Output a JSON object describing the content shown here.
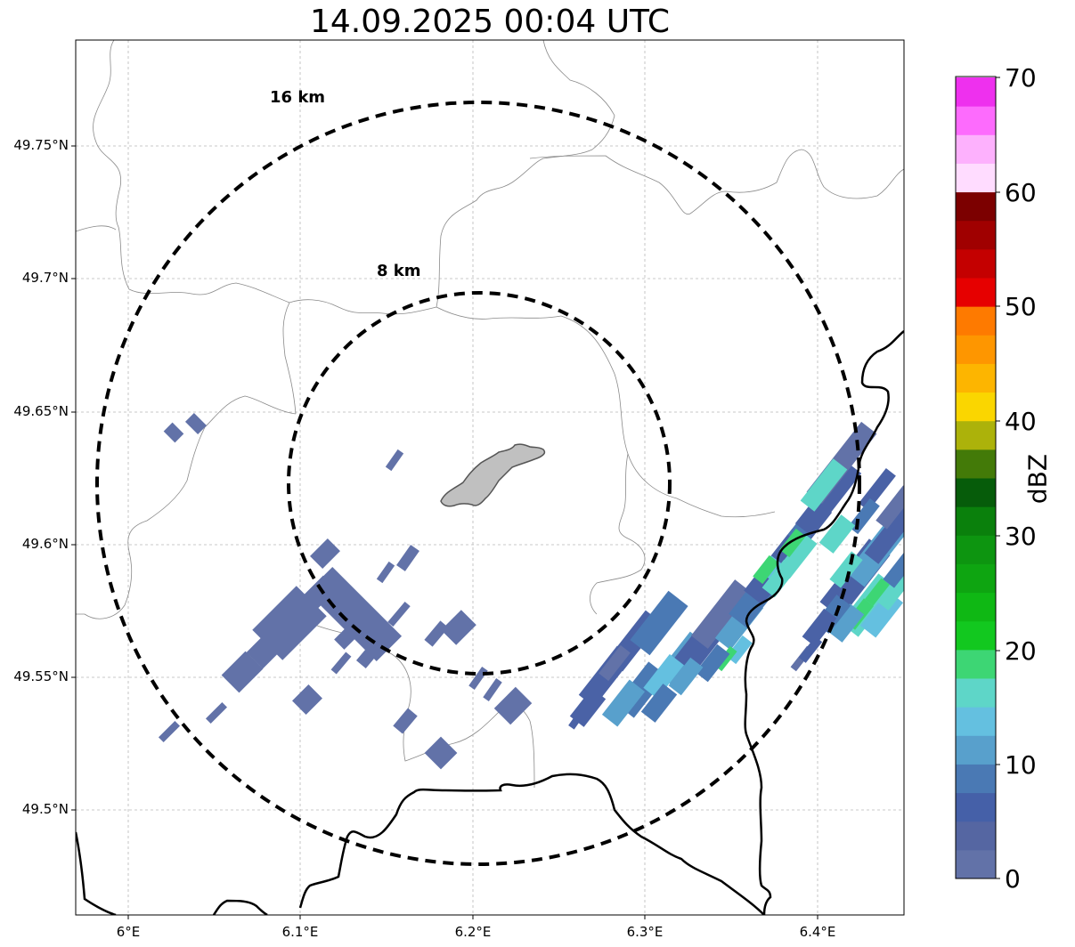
{
  "title": "14.09.2025 00:04 UTC",
  "map": {
    "lat_ticks": [
      "49.75°N",
      "49.7°N",
      "49.65°N",
      "49.6°N",
      "49.55°N",
      "49.5°N"
    ],
    "lon_ticks": [
      "6°E",
      "6.1°E",
      "6.2°E",
      "6.3°E",
      "6.4°E"
    ],
    "range_rings": [
      {
        "label": "16 km",
        "radius_km": 16
      },
      {
        "label": "8 km",
        "radius_km": 8
      }
    ],
    "gridlines": true,
    "colors": {
      "ring": "#000000",
      "border": "#000000",
      "admin_lines": "#8a8a8a",
      "city_fill": "#c0c0c0",
      "city_outline": "#555555"
    }
  },
  "colorbar": {
    "title": "dBZ",
    "ticks": [
      "0",
      "10",
      "20",
      "30",
      "40",
      "50",
      "60",
      "70"
    ],
    "levels": [
      "#6272a8",
      "#5566a2",
      "#4560a8",
      "#4a79b4",
      "#58a0cc",
      "#64c0e0",
      "#5ed6c8",
      "#3dd674",
      "#12c81f",
      "#0fb814",
      "#0ea511",
      "#0d9510",
      "#0a800c",
      "#065c0a",
      "#437a08",
      "#acb20a",
      "#fad600",
      "#fdb500",
      "#fe9600",
      "#fe7a00",
      "#e60000",
      "#c40000",
      "#a00000",
      "#7c0000",
      "#ffdcff",
      "#fdb1fd",
      "#fd6bfd",
      "#ee30ee"
    ]
  },
  "precip_palette": {
    "weak": "#6272a8",
    "weak2": "#4a62a6",
    "mid": "#4a79b4",
    "light_blue": "#58a0cc",
    "cyan": "#64c0e0",
    "teal": "#5ed6c8",
    "green": "#3dd674"
  }
}
